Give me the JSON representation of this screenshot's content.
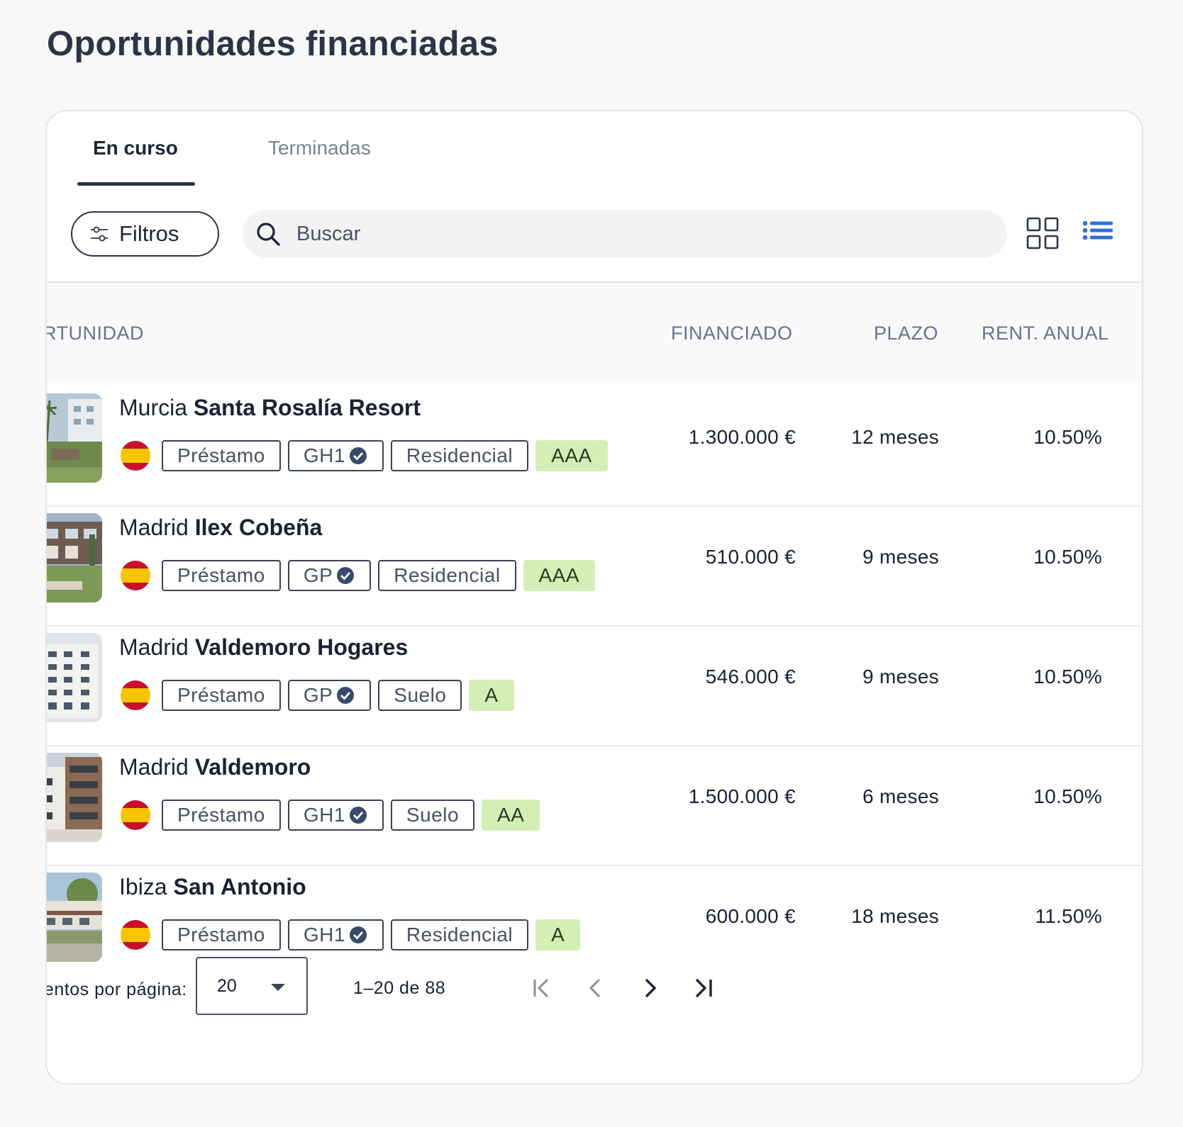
{
  "page": {
    "title": "Oportunidades financiadas"
  },
  "tabs": [
    {
      "label": "En curso",
      "active": true
    },
    {
      "label": "Terminadas",
      "active": false
    }
  ],
  "toolbar": {
    "filters_label": "Filtros",
    "filters_icon": "sliders-icon",
    "search_icon": "search-icon",
    "search_placeholder": "Buscar",
    "grid_view_icon": "grid-view-icon",
    "list_view_icon": "list-view-icon",
    "accent_color": "#2f6fdd"
  },
  "table": {
    "headers": {
      "opportunity": "RTUNIDAD",
      "financed": "FINANCIADO",
      "term": "PLAZO",
      "annual_return": "RENT. ANUAL"
    },
    "rows": [
      {
        "city": "Murcia",
        "name": "Santa Rosalía Resort",
        "flag": "spain-flag",
        "type": "Préstamo",
        "grade": "GH1",
        "category": "Residencial",
        "rating": "AAA",
        "financed": "1.300.000 €",
        "term": "12 meses",
        "annual_return": "10.50%"
      },
      {
        "city": "Madrid",
        "name": "Ilex Cobeña",
        "flag": "spain-flag",
        "type": "Préstamo",
        "grade": "GP",
        "category": "Residencial",
        "rating": "AAA",
        "financed": "510.000 €",
        "term": "9 meses",
        "annual_return": "10.50%"
      },
      {
        "city": "Madrid",
        "name": "Valdemoro Hogares",
        "flag": "spain-flag",
        "type": "Préstamo",
        "grade": "GP",
        "category": "Suelo",
        "rating": "A",
        "financed": "546.000 €",
        "term": "9 meses",
        "annual_return": "10.50%"
      },
      {
        "city": "Madrid",
        "name": "Valdemoro",
        "flag": "spain-flag",
        "type": "Préstamo",
        "grade": "GH1",
        "category": "Suelo",
        "rating": "AA",
        "financed": "1.500.000 €",
        "term": "6 meses",
        "annual_return": "10.50%"
      },
      {
        "city": "Ibiza",
        "name": "San Antonio",
        "flag": "spain-flag",
        "type": "Préstamo",
        "grade": "GH1",
        "category": "Residencial",
        "rating": "A",
        "financed": "600.000 €",
        "term": "18 meses",
        "annual_return": "11.50%"
      }
    ]
  },
  "pagination": {
    "per_page_label": "entos por página:",
    "per_page_value": "20",
    "range_text": "1–20 de 88",
    "first_icon": "first-page-icon",
    "prev_icon": "chevron-left-icon",
    "next_icon": "chevron-right-icon",
    "last_icon": "last-page-icon"
  }
}
